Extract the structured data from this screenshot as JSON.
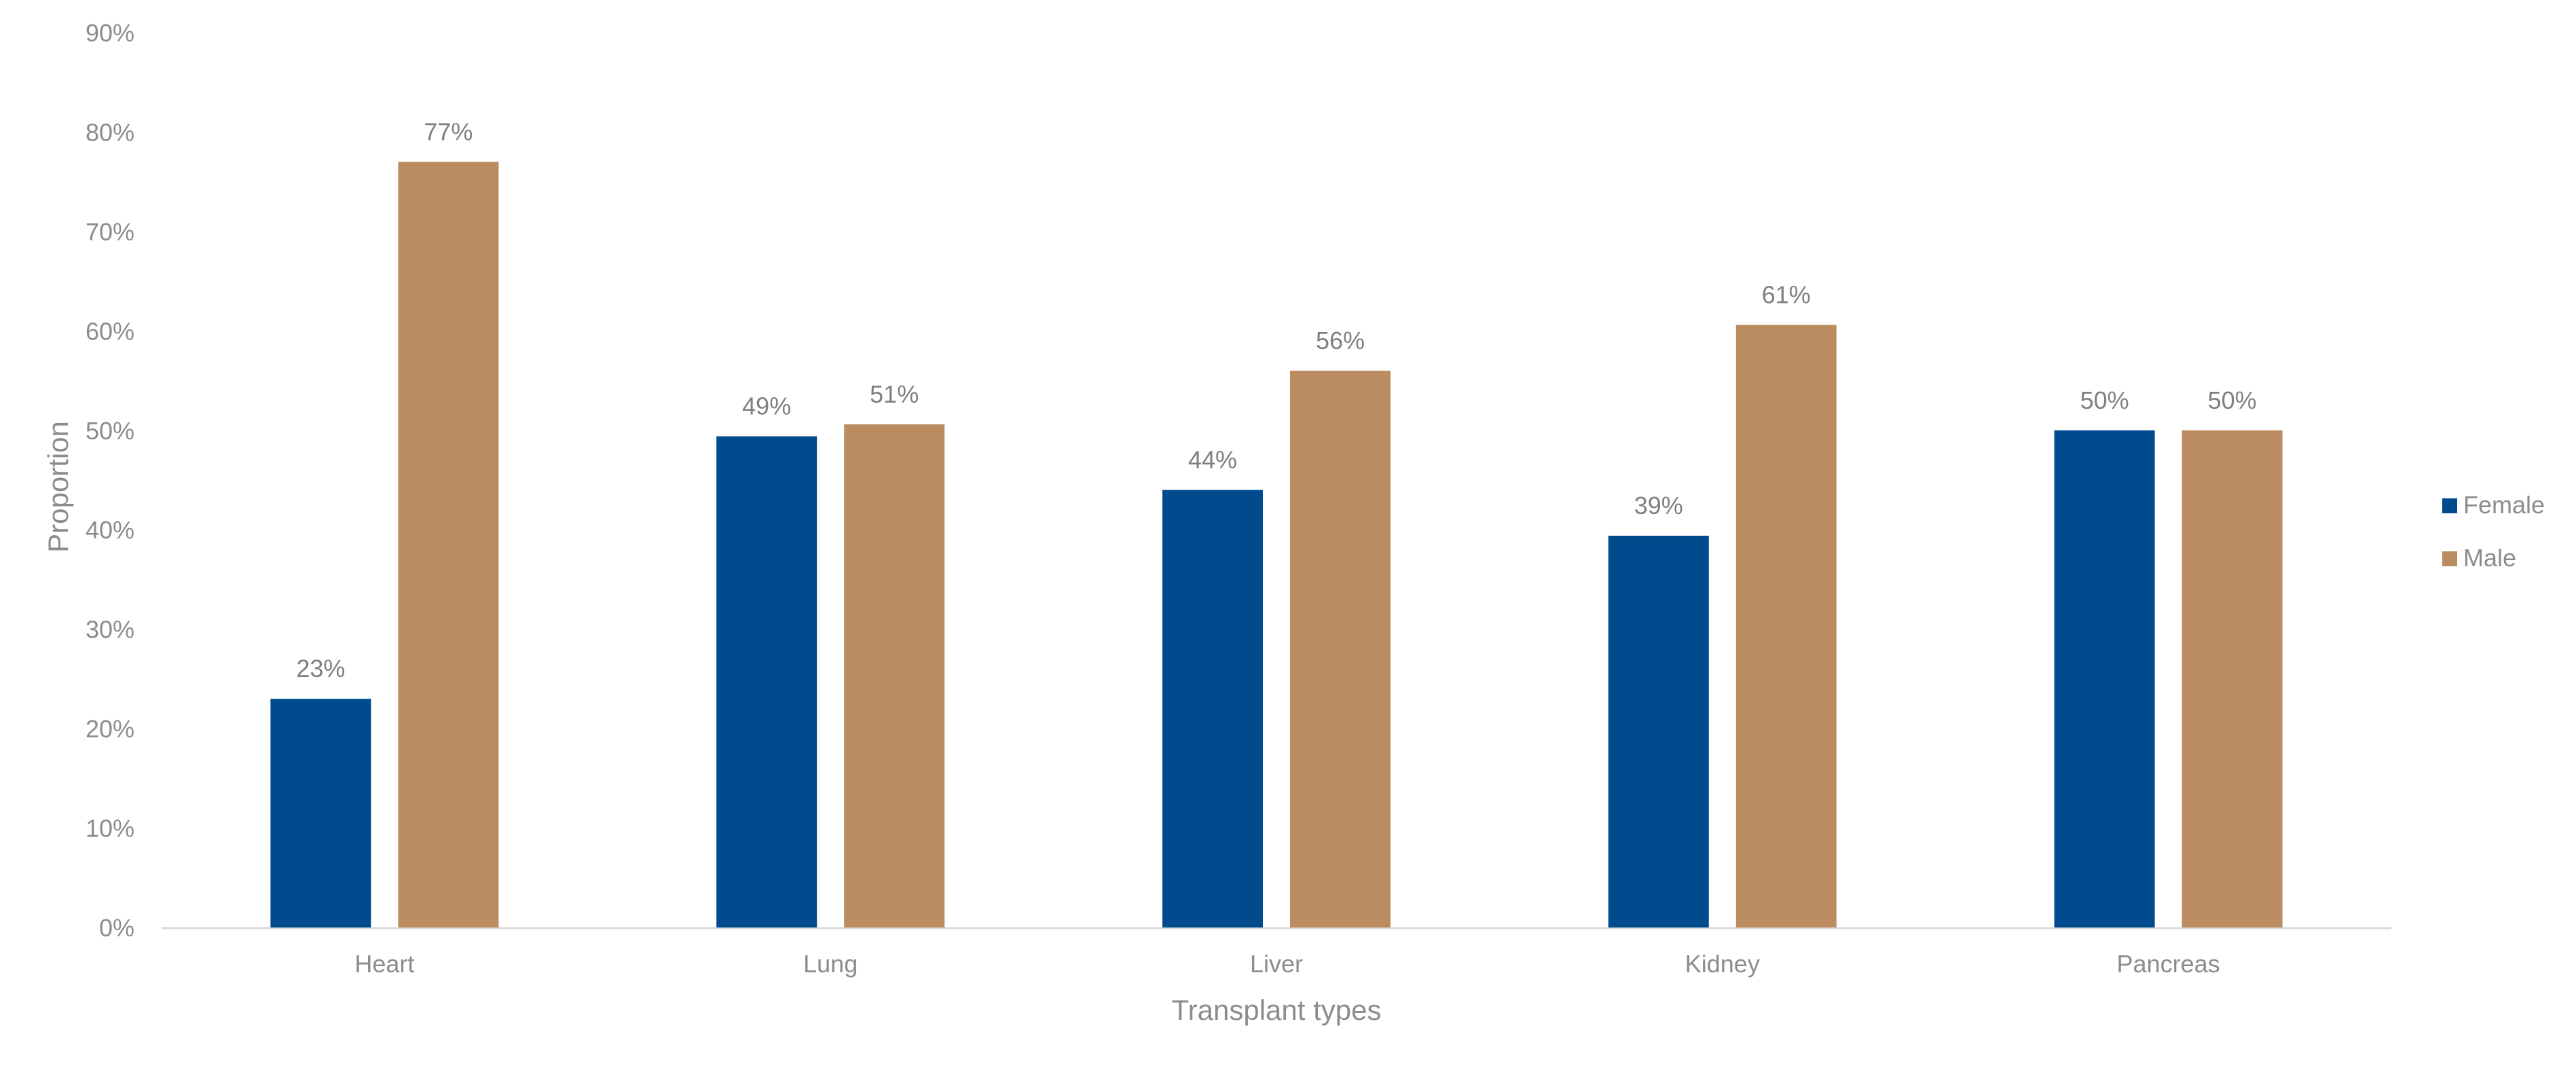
{
  "chart_data": {
    "type": "bar",
    "title": "",
    "xlabel": "Transplant types",
    "ylabel": "Proportion",
    "categories": [
      "Heart",
      "Lung",
      "Liver",
      "Kidney",
      "Pancreas"
    ],
    "series": [
      {
        "name": "Female",
        "color": "#004b8d",
        "values": [
          23,
          49.4,
          44,
          39.4,
          50
        ],
        "labels": [
          "23%",
          "49%",
          "44%",
          "39%",
          "50%"
        ]
      },
      {
        "name": "Male",
        "color": "#bb8c5f",
        "values": [
          77,
          50.6,
          56,
          60.6,
          50
        ],
        "labels": [
          "77%",
          "51%",
          "56%",
          "61%",
          "50%"
        ]
      }
    ],
    "ylim": [
      0,
      90
    ],
    "yticks": [
      0,
      10,
      20,
      30,
      40,
      50,
      60,
      70,
      80,
      90
    ],
    "ytick_labels": [
      "0%",
      "10%",
      "20%",
      "30%",
      "40%",
      "50%",
      "60%",
      "70%",
      "80%",
      "90%"
    ],
    "grid": false,
    "legend_position": "right"
  }
}
